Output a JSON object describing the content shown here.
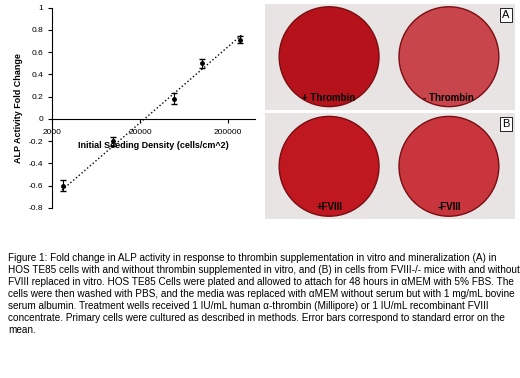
{
  "chart_data": {
    "type": "scatter",
    "xlabel": "Initial Seeding Density (cells/cm^2)",
    "ylabel": "ALP Activity Fold Change",
    "log": "x",
    "grid": false,
    "xlim": [
      2000,
      400000
    ],
    "xticks": [
      2000,
      20000,
      200000
    ],
    "ylim": [
      -0.8,
      1
    ],
    "yticks": [
      -0.8,
      -0.6,
      -0.4,
      -0.2,
      0,
      0.2,
      0.4,
      0.6,
      0.8,
      1
    ],
    "series": [
      {
        "type": "scatter",
        "x": [
          2700,
          9800,
          49000,
          100000,
          270000
        ],
        "values": [
          -0.6,
          -0.2,
          0.18,
          0.5,
          0.71
        ],
        "error": [
          0.05,
          0.04,
          0.05,
          0.04,
          0.03
        ],
        "color": "#000000",
        "marker": "circle"
      },
      {
        "type": "line",
        "x": [
          2600,
          290000
        ],
        "values": [
          -0.64,
          0.76
        ],
        "color": "#000000",
        "line_style": "dotted"
      }
    ]
  },
  "panels": [
    {
      "label": "A",
      "left": "+ Thrombin",
      "right": "- Thrombin"
    },
    {
      "label": "B",
      "left": "+FVIII",
      "right": "-FVIII"
    }
  ],
  "caption": "Figure 1: Fold change in ALP activity in response to thrombin supplementation in vitro and mineralization (A) in HOS TE85 cells with and without thrombin supplemented in vitro, and (B) in cells from FVIII-/- mice with and without FVIII replaced in vitro. HOS TE85 Cells were plated and allowed to attach for 48 hours in αMEM with 5% FBS. The cells were then washed with PBS, and the media was replaced with αMEM without serum but with 1 mg/mL bovine serum albumin. Treatment wells received 1 IU/mL human α-thrombin (Millipore) or 1 IU/mL recombinant FVIII concentrate. Primary cells were cultured as described in methods. Error bars correspond to standard error on the mean."
}
